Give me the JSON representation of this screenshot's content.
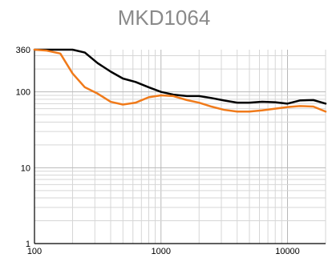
{
  "chart_data": {
    "type": "line",
    "title": "MKD1064",
    "xlabel": "",
    "ylabel": "",
    "xscale": "log",
    "yscale": "log",
    "xlim": [
      100,
      20000
    ],
    "ylim": [
      1,
      360
    ],
    "x_tick_labels": [
      {
        "value": 100,
        "label": "100"
      },
      {
        "value": 1000,
        "label": "1000"
      },
      {
        "value": 10000,
        "label": "10000"
      }
    ],
    "y_tick_labels": [
      {
        "value": 1,
        "label": "1"
      },
      {
        "value": 10,
        "label": "10"
      },
      {
        "value": 100,
        "label": "100"
      },
      {
        "value": 360,
        "label": "360"
      }
    ],
    "grid": true,
    "series": [
      {
        "color": "#000000",
        "points": [
          {
            "x": 100,
            "y": 360
          },
          {
            "x": 150,
            "y": 360
          },
          {
            "x": 200,
            "y": 360
          },
          {
            "x": 250,
            "y": 330
          },
          {
            "x": 315,
            "y": 240
          },
          {
            "x": 400,
            "y": 185
          },
          {
            "x": 500,
            "y": 150
          },
          {
            "x": 630,
            "y": 135
          },
          {
            "x": 800,
            "y": 115
          },
          {
            "x": 1000,
            "y": 100
          },
          {
            "x": 1250,
            "y": 92
          },
          {
            "x": 1600,
            "y": 88
          },
          {
            "x": 2000,
            "y": 88
          },
          {
            "x": 2500,
            "y": 83
          },
          {
            "x": 3150,
            "y": 77
          },
          {
            "x": 4000,
            "y": 72
          },
          {
            "x": 5000,
            "y": 72
          },
          {
            "x": 6300,
            "y": 74
          },
          {
            "x": 8000,
            "y": 73
          },
          {
            "x": 10000,
            "y": 70
          },
          {
            "x": 12500,
            "y": 77
          },
          {
            "x": 16000,
            "y": 78
          },
          {
            "x": 20000,
            "y": 70
          }
        ]
      },
      {
        "color": "#f07a1a",
        "points": [
          {
            "x": 100,
            "y": 360
          },
          {
            "x": 125,
            "y": 350
          },
          {
            "x": 160,
            "y": 320
          },
          {
            "x": 200,
            "y": 175
          },
          {
            "x": 250,
            "y": 115
          },
          {
            "x": 315,
            "y": 95
          },
          {
            "x": 400,
            "y": 74
          },
          {
            "x": 500,
            "y": 68
          },
          {
            "x": 630,
            "y": 72
          },
          {
            "x": 800,
            "y": 85
          },
          {
            "x": 1000,
            "y": 90
          },
          {
            "x": 1250,
            "y": 88
          },
          {
            "x": 1600,
            "y": 78
          },
          {
            "x": 2000,
            "y": 72
          },
          {
            "x": 2500,
            "y": 64
          },
          {
            "x": 3150,
            "y": 58
          },
          {
            "x": 4000,
            "y": 55
          },
          {
            "x": 5000,
            "y": 55
          },
          {
            "x": 6300,
            "y": 57
          },
          {
            "x": 8000,
            "y": 60
          },
          {
            "x": 10000,
            "y": 63
          },
          {
            "x": 12500,
            "y": 65
          },
          {
            "x": 16000,
            "y": 64
          },
          {
            "x": 20000,
            "y": 55
          }
        ]
      }
    ]
  }
}
